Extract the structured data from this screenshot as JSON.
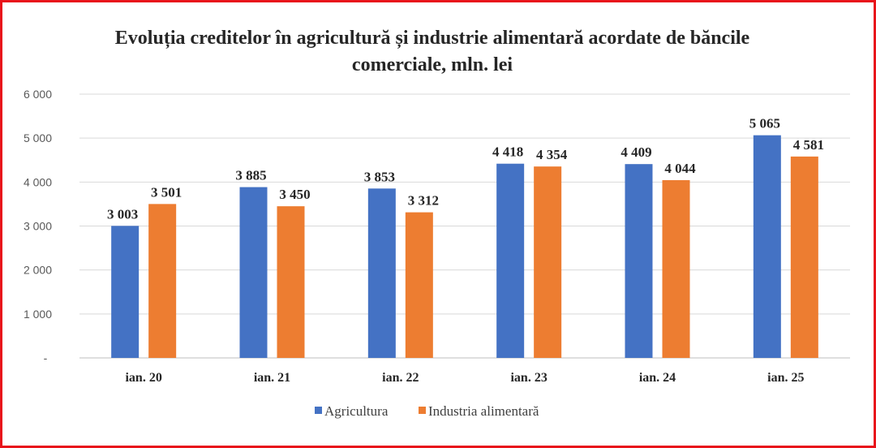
{
  "chart_data": {
    "type": "bar",
    "title": "Evoluția creditelor în agricultură și industrie alimentară acordate de băncile comerciale, mln. lei",
    "categories": [
      "ian. 20",
      "ian. 21",
      "ian. 22",
      "ian. 23",
      "ian. 24",
      "ian. 25"
    ],
    "series": [
      {
        "name": "Agricultura",
        "color": "#4472c4",
        "values": [
          3003,
          3885,
          3853,
          4418,
          4409,
          5065
        ],
        "labels": [
          "3 003",
          "3 885",
          "3 853",
          "4 418",
          "4 409",
          "5 065"
        ]
      },
      {
        "name": "Industria alimentară",
        "color": "#ed7d31",
        "values": [
          3501,
          3450,
          3312,
          4354,
          4044,
          4581
        ],
        "labels": [
          "3 501",
          "3 450",
          "3 312",
          "4 354",
          "4 044",
          "4 581"
        ]
      }
    ],
    "yticks": [
      {
        "value": 0,
        "label": "-"
      },
      {
        "value": 1000,
        "label": "1 000"
      },
      {
        "value": 2000,
        "label": "2 000"
      },
      {
        "value": 3000,
        "label": "3 000"
      },
      {
        "value": 4000,
        "label": "4 000"
      },
      {
        "value": 5000,
        "label": "5 000"
      },
      {
        "value": 6000,
        "label": "6 000"
      }
    ],
    "ylim": [
      0,
      6000
    ],
    "grid": true,
    "legend": "bottom"
  }
}
